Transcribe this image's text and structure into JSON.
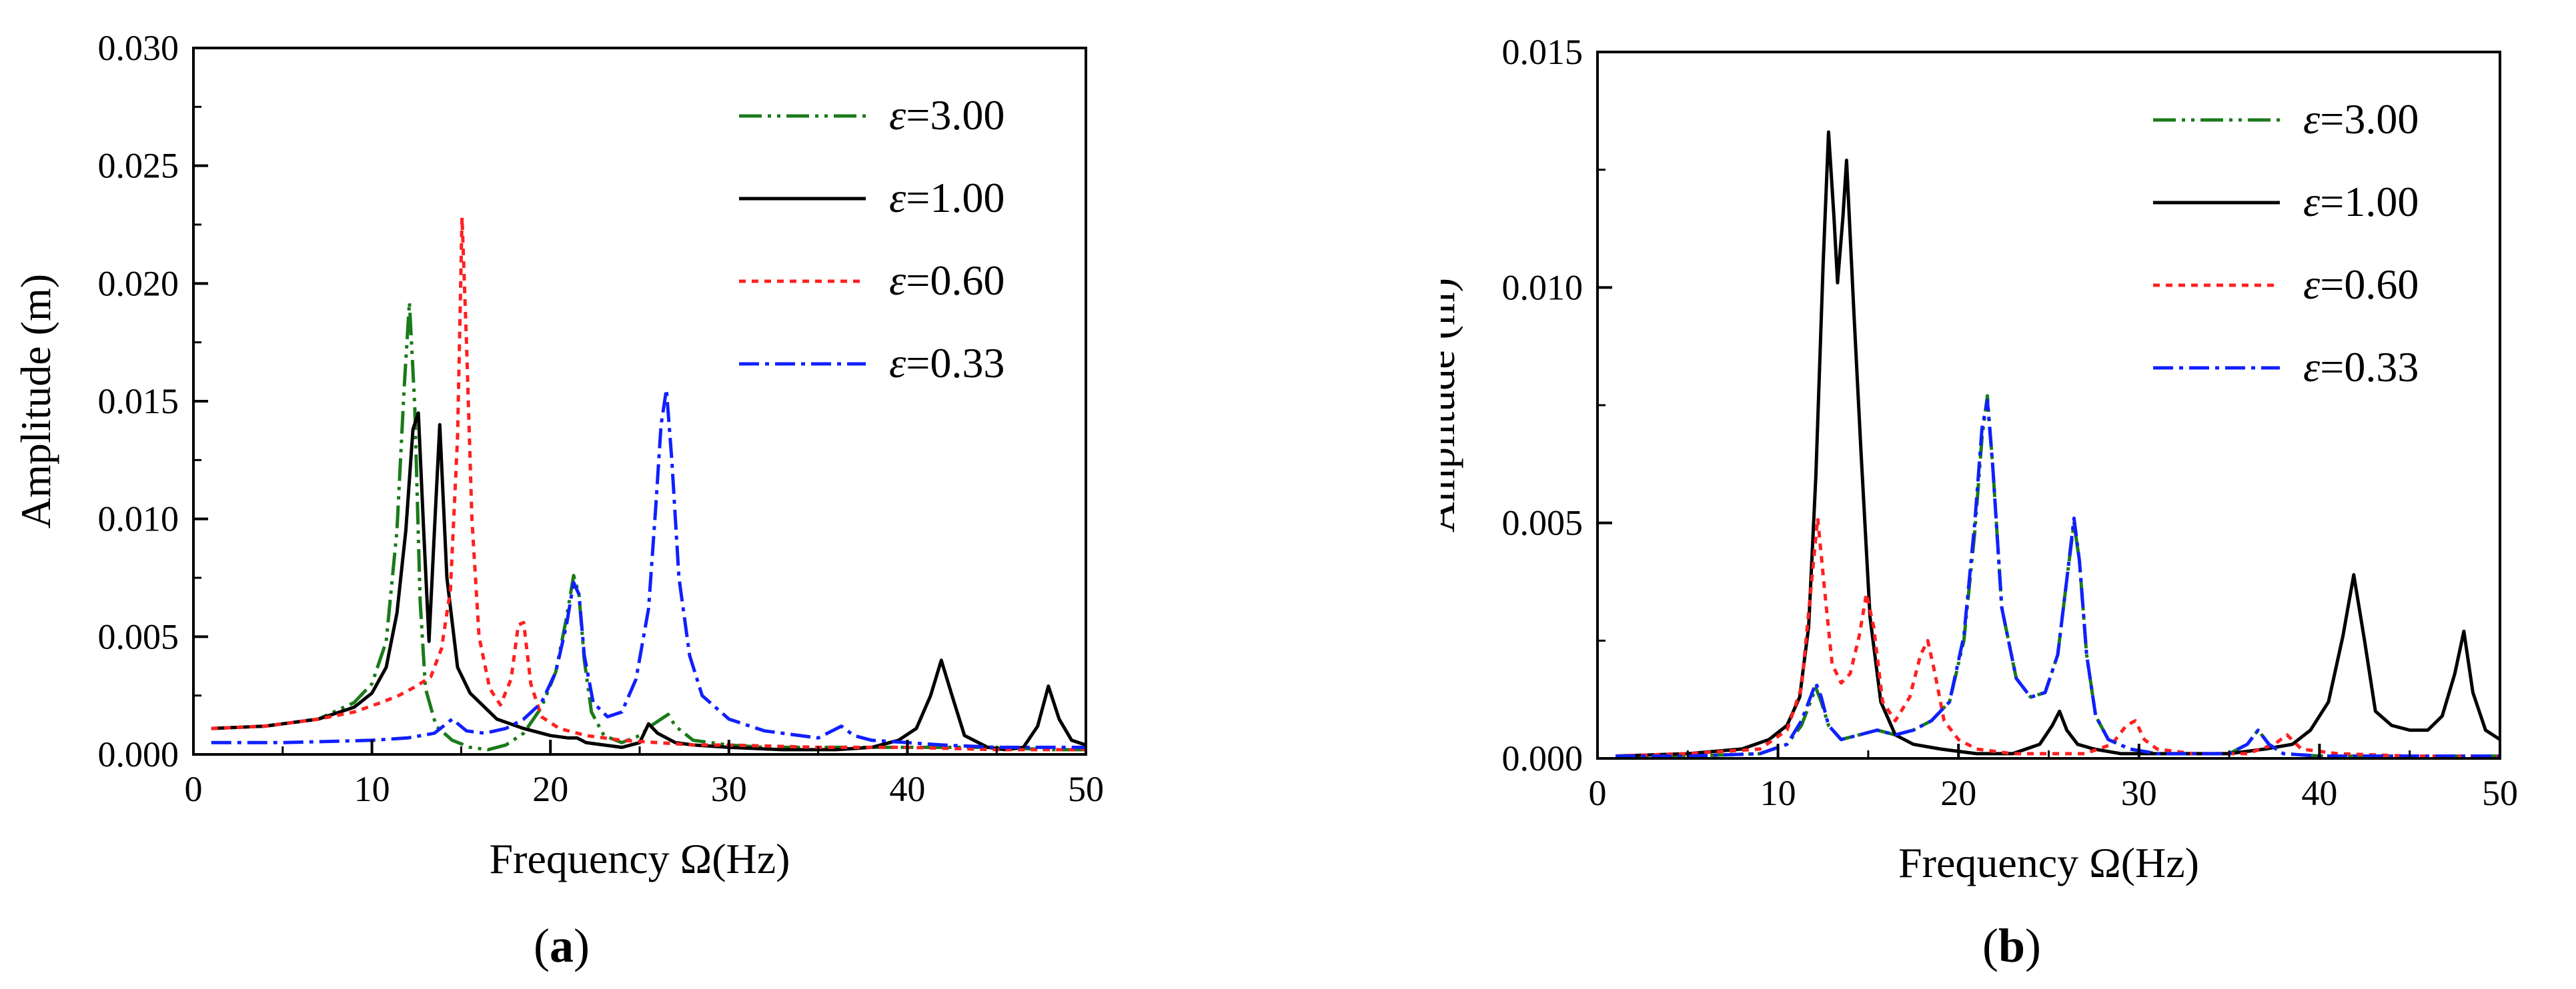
{
  "chart_data": [
    {
      "type": "line",
      "panel_label": {
        "open": "(",
        "letter": "a",
        "close": ")"
      },
      "xlabel": "Frequency Ω(Hz)",
      "ylabel": "Amplitude (m)",
      "xlim": [
        0,
        50
      ],
      "ylim": [
        0,
        0.03
      ],
      "xticks": [
        "0",
        "10",
        "20",
        "30",
        "40",
        "50"
      ],
      "yticks": [
        "0.000",
        "0.005",
        "0.010",
        "0.015",
        "0.020",
        "0.025",
        "0.030"
      ],
      "grid": false,
      "legend_position": "top-right",
      "series": [
        {
          "name": "ε=3.00",
          "label_symbol": "ε",
          "label_value": "=3.00",
          "color": "#1a7a1a",
          "dash": "34 9 5 9 5 9",
          "x": [
            1,
            4,
            7,
            9,
            10,
            10.8,
            11.4,
            11.8,
            12.1,
            12.4,
            12.7,
            13.0,
            13.6,
            14.5,
            15.5,
            16.5,
            17.5,
            18.5,
            19.5,
            20.3,
            20.9,
            21.3,
            21.6,
            21.9,
            22.3,
            23,
            24,
            25,
            25.6,
            26.2,
            26.6,
            27,
            28,
            30,
            32,
            35,
            38,
            40,
            42,
            45,
            48,
            50
          ],
          "y": [
            0.0011,
            0.0012,
            0.0015,
            0.0022,
            0.003,
            0.0048,
            0.0095,
            0.0155,
            0.0192,
            0.0148,
            0.0065,
            0.0028,
            0.0012,
            0.0006,
            0.0003,
            0.0002,
            0.0004,
            0.0009,
            0.002,
            0.0035,
            0.0058,
            0.0076,
            0.0068,
            0.004,
            0.0018,
            0.0008,
            0.0005,
            0.0008,
            0.0012,
            0.0015,
            0.0017,
            0.0012,
            0.0006,
            0.0004,
            0.0003,
            0.0003,
            0.0003,
            0.0003,
            0.0003,
            0.0003,
            0.0002,
            0.0002
          ]
        },
        {
          "name": "ε=1.00",
          "label_symbol": "ε",
          "label_value": "=1.00",
          "color": "#000000",
          "dash": "",
          "x": [
            1,
            4,
            7,
            9,
            10,
            10.8,
            11.4,
            11.9,
            12.3,
            12.6,
            12.9,
            13.2,
            13.5,
            13.8,
            14.2,
            14.8,
            15.5,
            17,
            18.5,
            20,
            21,
            21.5,
            22,
            23,
            24,
            25,
            25.5,
            26,
            27,
            28,
            30,
            33,
            36,
            38,
            39.5,
            40.5,
            41.3,
            41.9,
            42.5,
            43.2,
            44.5,
            45.5,
            46.5,
            47.3,
            47.9,
            48.5,
            49.2,
            50
          ],
          "y": [
            0.0011,
            0.0012,
            0.0015,
            0.002,
            0.0026,
            0.0037,
            0.006,
            0.0095,
            0.0138,
            0.0145,
            0.0095,
            0.0048,
            0.0095,
            0.014,
            0.0075,
            0.0037,
            0.0026,
            0.0015,
            0.0011,
            0.0008,
            0.0007,
            0.0007,
            0.0005,
            0.0004,
            0.0003,
            0.0005,
            0.0013,
            0.0009,
            0.0005,
            0.0004,
            0.0003,
            0.0002,
            0.0002,
            0.0003,
            0.0006,
            0.0011,
            0.0025,
            0.004,
            0.0025,
            0.0008,
            0.0003,
            0.0002,
            0.0003,
            0.0012,
            0.0029,
            0.0015,
            0.0006,
            0.0004
          ]
        },
        {
          "name": "ε=0.60",
          "label_symbol": "ε",
          "label_value": "=0.60",
          "color": "#ff2020",
          "dash": "10 9",
          "x": [
            1,
            4,
            7,
            9,
            10.5,
            11.5,
            12.5,
            13.3,
            13.9,
            14.4,
            14.8,
            15.05,
            15.3,
            15.6,
            16,
            16.6,
            17.2,
            17.8,
            18.2,
            18.5,
            18.9,
            19.5,
            20.5,
            22,
            24,
            26,
            28,
            30,
            35,
            40,
            45,
            50
          ],
          "y": [
            0.0011,
            0.0012,
            0.0015,
            0.0018,
            0.0022,
            0.0025,
            0.0029,
            0.0033,
            0.0045,
            0.007,
            0.0135,
            0.0228,
            0.0175,
            0.01,
            0.005,
            0.0028,
            0.0021,
            0.0032,
            0.0055,
            0.0056,
            0.003,
            0.0016,
            0.0011,
            0.0008,
            0.0006,
            0.0005,
            0.0004,
            0.0004,
            0.0003,
            0.0003,
            0.0002,
            0.0002
          ]
        },
        {
          "name": "ε=0.33",
          "label_symbol": "ε",
          "label_value": "=0.33",
          "color": "#1020ff",
          "dash": "30 9 6 9",
          "x": [
            1,
            5,
            10,
            12,
            13.5,
            14.5,
            15.3,
            16.3,
            17.5,
            18.5,
            19.5,
            20.3,
            20.9,
            21.3,
            21.6,
            21.9,
            22.4,
            23.2,
            24,
            24.8,
            25.5,
            25.9,
            26.2,
            26.5,
            26.8,
            27.2,
            27.8,
            28.5,
            30,
            32,
            35,
            36.3,
            37,
            38,
            40,
            42,
            45,
            48,
            50
          ],
          "y": [
            0.0005,
            0.0005,
            0.0006,
            0.0007,
            0.0009,
            0.0015,
            0.001,
            0.0009,
            0.0011,
            0.0015,
            0.0022,
            0.0035,
            0.0055,
            0.0073,
            0.0068,
            0.0042,
            0.0022,
            0.0016,
            0.0018,
            0.0032,
            0.0062,
            0.0105,
            0.014,
            0.0155,
            0.0125,
            0.0075,
            0.0042,
            0.0025,
            0.0015,
            0.001,
            0.0007,
            0.0012,
            0.0008,
            0.0006,
            0.0005,
            0.0004,
            0.0003,
            0.0003,
            0.0003
          ]
        }
      ]
    },
    {
      "type": "line",
      "panel_label": {
        "open": "(",
        "letter": "b",
        "close": ")"
      },
      "xlabel": "Frequency Ω(Hz)",
      "ylabel": "Amplitude (m)",
      "xlim": [
        0,
        50
      ],
      "ylim": [
        0,
        0.015
      ],
      "xticks": [
        "0",
        "10",
        "20",
        "30",
        "40",
        "50"
      ],
      "yticks": [
        "0.000",
        "0.005",
        "0.010",
        "0.015"
      ],
      "grid": false,
      "legend_position": "top-right",
      "series": [
        {
          "name": "ε=3.00",
          "label_symbol": "ε",
          "label_value": "=3.00",
          "color": "#1a7a1a",
          "dash": "34 9 5 9 5 9",
          "x": [
            1,
            5,
            9,
            10.5,
            11.3,
            11.8,
            12.1,
            12.4,
            12.8,
            13.5,
            14.5,
            15.5,
            16.5,
            17.5,
            18.5,
            19.5,
            20.3,
            20.9,
            21.3,
            21.6,
            21.9,
            22.4,
            23.2,
            24,
            24.8,
            25.5,
            26,
            26.4,
            26.7,
            27.1,
            27.6,
            28.3,
            29.5,
            31,
            33,
            35,
            36,
            36.6,
            37.2,
            38,
            40,
            42,
            45,
            48,
            50
          ],
          "y": [
            5e-05,
            5e-05,
            0.0001,
            0.0003,
            0.0007,
            0.0012,
            0.0015,
            0.0012,
            0.0007,
            0.0004,
            0.0005,
            0.0006,
            0.0005,
            0.0006,
            0.0008,
            0.0012,
            0.0025,
            0.0048,
            0.0068,
            0.0077,
            0.0062,
            0.0032,
            0.0017,
            0.0013,
            0.0014,
            0.0022,
            0.0038,
            0.005,
            0.0042,
            0.0022,
            0.0009,
            0.0004,
            0.0002,
            0.0001,
            0.0001,
            0.0001,
            0.0003,
            0.0006,
            0.0003,
            0.0001,
            5e-05,
            5e-05,
            5e-05,
            5e-05,
            5e-05
          ]
        },
        {
          "name": "ε=1.00",
          "label_symbol": "ε",
          "label_value": "=1.00",
          "color": "#000000",
          "dash": "",
          "x": [
            1,
            5,
            8,
            9.5,
            10.5,
            11.2,
            11.7,
            12.1,
            12.5,
            12.8,
            13.1,
            13.3,
            13.6,
            13.8,
            14.2,
            14.6,
            15.1,
            15.7,
            16.5,
            17.5,
            19,
            21,
            23,
            24.5,
            25.2,
            25.6,
            26,
            26.6,
            27.5,
            29,
            32,
            35,
            37,
            38.5,
            39.5,
            40.5,
            41.3,
            41.9,
            42.5,
            43.1,
            44,
            45,
            46,
            46.8,
            47.5,
            48,
            48.5,
            49.2,
            50
          ],
          "y": [
            5e-05,
            0.0001,
            0.0002,
            0.0004,
            0.0007,
            0.0013,
            0.0028,
            0.006,
            0.0105,
            0.0133,
            0.0115,
            0.0101,
            0.0115,
            0.0127,
            0.0095,
            0.0065,
            0.003,
            0.0012,
            0.0005,
            0.0003,
            0.0002,
            0.0001,
            0.0001,
            0.0003,
            0.0007,
            0.001,
            0.0006,
            0.0003,
            0.0002,
            0.0001,
            0.0001,
            0.0001,
            0.0002,
            0.0003,
            0.0006,
            0.0012,
            0.0026,
            0.0039,
            0.0025,
            0.001,
            0.0007,
            0.0006,
            0.0006,
            0.0009,
            0.0018,
            0.0027,
            0.0014,
            0.0006,
            0.0004
          ]
        },
        {
          "name": "ε=0.60",
          "label_symbol": "ε",
          "label_value": "=0.60",
          "color": "#ff2020",
          "dash": "10 9",
          "x": [
            1,
            5,
            9,
            10.5,
            11.3,
            11.8,
            12.2,
            12.6,
            13,
            13.5,
            14,
            14.5,
            14.9,
            15.3,
            15.8,
            16.5,
            17.3,
            17.9,
            18.3,
            18.7,
            19.2,
            20,
            21,
            23,
            25,
            27,
            28.5,
            29.3,
            29.8,
            30.3,
            31,
            33,
            36,
            37.5,
            38.2,
            39,
            41,
            45,
            50
          ],
          "y": [
            5e-05,
            0.0001,
            0.0002,
            0.0006,
            0.0015,
            0.0035,
            0.0051,
            0.0035,
            0.002,
            0.0016,
            0.0018,
            0.0026,
            0.0035,
            0.0028,
            0.0012,
            0.0008,
            0.0013,
            0.0022,
            0.0025,
            0.0018,
            0.0008,
            0.0004,
            0.0002,
            0.0001,
            0.0001,
            0.0001,
            0.0003,
            0.0007,
            0.0008,
            0.0004,
            0.0002,
            0.0001,
            0.0001,
            0.0003,
            0.0005,
            0.0002,
            0.0001,
            5e-05,
            5e-05
          ]
        },
        {
          "name": "ε=0.33",
          "label_symbol": "ε",
          "label_value": "=0.33",
          "color": "#1020ff",
          "dash": "30 9 6 9",
          "x": [
            1,
            5,
            9,
            10.5,
            11.3,
            11.8,
            12.1,
            12.4,
            12.8,
            13.5,
            14.5,
            15.5,
            16.5,
            17.5,
            18.5,
            19.5,
            20.3,
            20.9,
            21.3,
            21.6,
            21.9,
            22.4,
            23.2,
            24,
            24.8,
            25.5,
            26,
            26.4,
            26.7,
            27.1,
            27.6,
            28.3,
            29.5,
            31,
            33,
            35,
            36,
            36.6,
            37.2,
            38,
            40,
            42,
            45,
            48,
            50
          ],
          "y": [
            5e-05,
            5e-05,
            0.0001,
            0.0003,
            0.0008,
            0.0013,
            0.0016,
            0.0013,
            0.0007,
            0.0004,
            0.0005,
            0.0006,
            0.0005,
            0.0006,
            0.0008,
            0.0012,
            0.0026,
            0.005,
            0.007,
            0.0076,
            0.0062,
            0.0032,
            0.0017,
            0.0013,
            0.0014,
            0.0022,
            0.0038,
            0.0051,
            0.0042,
            0.0022,
            0.0009,
            0.0004,
            0.0002,
            0.0001,
            0.0001,
            0.0001,
            0.0003,
            0.0006,
            0.0003,
            0.0001,
            5e-05,
            5e-05,
            5e-05,
            5e-05,
            5e-05
          ]
        }
      ]
    }
  ]
}
